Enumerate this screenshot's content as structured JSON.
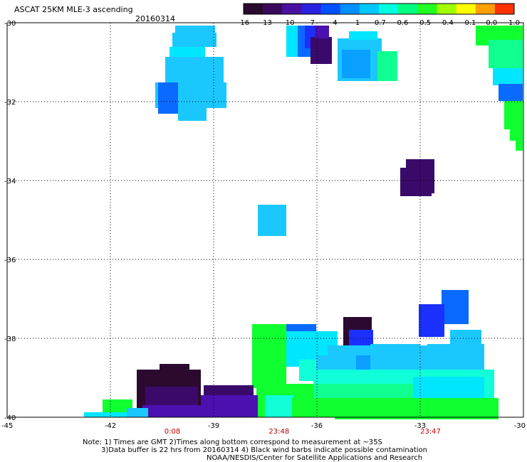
{
  "header": {
    "title": "ASCAT 25KM MLE-3 ascending",
    "date": "20160314"
  },
  "colorbar": {
    "labels": [
      "-16",
      "-13",
      "-10",
      "-7",
      "-4",
      "-1",
      "-0.7",
      "-0.6",
      "-0.5",
      "-0.4",
      "-0.1",
      "0.0",
      "1.0"
    ],
    "colors": [
      "#2a0a2a",
      "#3a0a5a",
      "#4a10a0",
      "#2a20e0",
      "#0050ff",
      "#0090ff",
      "#00c8ff",
      "#00ffe0",
      "#00ff80",
      "#20ff20",
      "#a0ff00",
      "#ffff00",
      "#ffa000",
      "#ff3000"
    ]
  },
  "map": {
    "lat_labels": [
      "-30",
      "-32",
      "-34",
      "-36",
      "-38",
      "-40"
    ],
    "lon_labels": [
      "-45",
      "-42",
      "-39",
      "-36",
      "-33",
      "-30"
    ],
    "lat_values": [
      -30,
      -32,
      -34,
      -36,
      -38,
      -40
    ],
    "lon_values": [
      -45,
      -42,
      -39,
      -36,
      -33,
      -30
    ],
    "lat_range": [
      -40,
      -30
    ],
    "lon_range": [
      -45,
      -30
    ],
    "grid": "dotted",
    "swath_times": [
      {
        "time": "0:08",
        "lon": -40.2
      },
      {
        "time": "23:48",
        "lon": -37.1
      },
      {
        "time": "23:47",
        "lon": -32.7
      }
    ]
  },
  "footer": {
    "line1": "Note: 1) Times are GMT 2)Times along bottom correspond to measurement at ~35S",
    "line2": "3)Data buffer is 22 hrs from 20160314 4) Black wind barbs indicate possible contamination",
    "line3": "NOAA/NESDIS/Center for Satellite Applications and Research"
  }
}
